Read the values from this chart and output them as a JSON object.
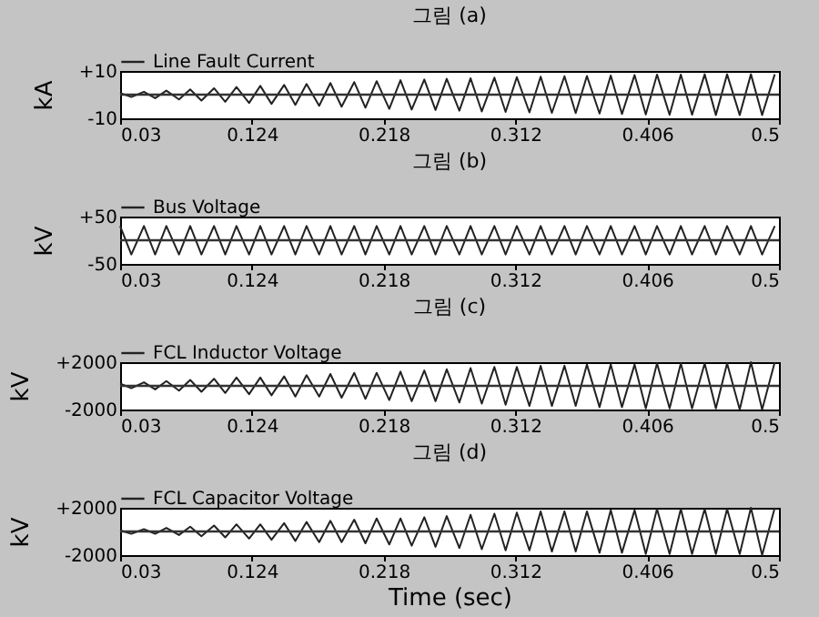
{
  "chart_data": [
    {
      "type": "line",
      "title": "그림 (a)",
      "ylabel": "kA",
      "legend": "top left",
      "ref_lines": [
        {
          "axis": "y",
          "value": 0,
          "color": "#333333"
        }
      ],
      "xlim": [
        0.03,
        0.5
      ],
      "xticks": [
        0.03,
        0.124,
        0.218,
        0.312,
        0.406,
        0.5
      ],
      "ylim": [
        -10,
        10
      ],
      "yticks": [
        {
          "value": -10,
          "label": "-10"
        },
        {
          "value": 10,
          "label": "+10"
        }
      ],
      "x": [
        0.03,
        0.038,
        0.047,
        0.055,
        0.063,
        0.072,
        0.08,
        0.088,
        0.097,
        0.105,
        0.113,
        0.122,
        0.13,
        0.138,
        0.147,
        0.155,
        0.163,
        0.172,
        0.18,
        0.188,
        0.197,
        0.205,
        0.213,
        0.222,
        0.23,
        0.238,
        0.247,
        0.255,
        0.263,
        0.272,
        0.28,
        0.288,
        0.297,
        0.305,
        0.313,
        0.322,
        0.33,
        0.338,
        0.347,
        0.355,
        0.363,
        0.372,
        0.38,
        0.388,
        0.397,
        0.405,
        0.413,
        0.422,
        0.43,
        0.438,
        0.447,
        0.455,
        0.463,
        0.472,
        0.48,
        0.488,
        0.497
      ],
      "series": [
        {
          "name": "Line Fault Current",
          "color": "#222222",
          "values": [
            0.7,
            -1,
            1.2,
            -1.5,
            1.7,
            -2,
            2.2,
            -2.5,
            2.7,
            -3,
            3.2,
            -3.5,
            3.7,
            -3.9,
            4.1,
            -4.3,
            4.5,
            -4.7,
            4.9,
            -5.1,
            5.3,
            -5.5,
            5.7,
            -6,
            6.1,
            -6.3,
            6.4,
            -6.5,
            6.7,
            -6.8,
            6.9,
            -7.1,
            7.2,
            -7.3,
            7.4,
            -7.5,
            7.6,
            -7.7,
            7.8,
            -7.8,
            7.9,
            -8,
            8.1,
            -8.2,
            8.3,
            -8.4,
            8.5,
            -8.5,
            8.5,
            -8.5,
            8.6,
            -8.6,
            8.6,
            -8.6,
            8.6,
            -8.6,
            8.6
          ]
        }
      ]
    },
    {
      "type": "line",
      "title": "그림 (b)",
      "ylabel": "kV",
      "legend": "top left",
      "ref_lines": [
        {
          "axis": "y",
          "value": 0,
          "color": "#333333"
        }
      ],
      "xlim": [
        0.03,
        0.5
      ],
      "xticks": [
        0.03,
        0.124,
        0.218,
        0.312,
        0.406,
        0.5
      ],
      "ylim": [
        -50,
        50
      ],
      "yticks": [
        {
          "value": -50,
          "label": "-50"
        },
        {
          "value": 50,
          "label": "+50"
        }
      ],
      "x": [
        0.03,
        0.038,
        0.047,
        0.055,
        0.063,
        0.072,
        0.08,
        0.088,
        0.097,
        0.105,
        0.113,
        0.122,
        0.13,
        0.138,
        0.147,
        0.155,
        0.163,
        0.172,
        0.18,
        0.188,
        0.197,
        0.205,
        0.213,
        0.222,
        0.23,
        0.238,
        0.247,
        0.255,
        0.263,
        0.272,
        0.28,
        0.288,
        0.297,
        0.305,
        0.313,
        0.322,
        0.33,
        0.338,
        0.347,
        0.355,
        0.363,
        0.372,
        0.38,
        0.388,
        0.397,
        0.405,
        0.413,
        0.422,
        0.43,
        0.438,
        0.447,
        0.455,
        0.463,
        0.472,
        0.48,
        0.488,
        0.497
      ],
      "series": [
        {
          "name": "Bus Voltage",
          "color": "#222222",
          "values": [
            30,
            -30,
            30,
            -30,
            30,
            -30,
            30,
            -30,
            30,
            -30,
            30,
            -30,
            30,
            -30,
            30,
            -30,
            30,
            -30,
            30,
            -30,
            30,
            -30,
            30,
            -30,
            30,
            -30,
            30,
            -30,
            30,
            -30,
            30,
            -30,
            30,
            -30,
            30,
            -30,
            30,
            -30,
            30,
            -30,
            30,
            -30,
            30,
            -30,
            30,
            -30,
            30,
            -30,
            30,
            -30,
            30,
            -30,
            30,
            -30,
            30,
            -30,
            30
          ]
        }
      ]
    },
    {
      "type": "line",
      "title": "그림 (c)",
      "ylabel": "kV",
      "legend": "top left",
      "ref_lines": [
        {
          "axis": "y",
          "value": 0,
          "color": "#333333"
        }
      ],
      "xlim": [
        0.03,
        0.5
      ],
      "xticks": [
        0.03,
        0.124,
        0.218,
        0.312,
        0.406,
        0.5
      ],
      "ylim": [
        -2000,
        2000
      ],
      "yticks": [
        {
          "value": -2000,
          "label": "-2000"
        },
        {
          "value": 2000,
          "label": "+2000"
        }
      ],
      "x": [
        0.03,
        0.038,
        0.047,
        0.055,
        0.063,
        0.072,
        0.08,
        0.088,
        0.097,
        0.105,
        0.113,
        0.122,
        0.13,
        0.138,
        0.147,
        0.155,
        0.163,
        0.172,
        0.18,
        0.188,
        0.197,
        0.205,
        0.213,
        0.222,
        0.23,
        0.238,
        0.247,
        0.255,
        0.263,
        0.272,
        0.28,
        0.288,
        0.297,
        0.305,
        0.313,
        0.322,
        0.33,
        0.338,
        0.347,
        0.355,
        0.363,
        0.372,
        0.38,
        0.388,
        0.397,
        0.405,
        0.413,
        0.422,
        0.43,
        0.438,
        0.447,
        0.455,
        0.463,
        0.472,
        0.48,
        0.488,
        0.497
      ],
      "series": [
        {
          "name": "FCL Inductor Voltage",
          "color": "#222222",
          "values": [
            200,
            -200,
            300,
            -300,
            400,
            -400,
            500,
            -500,
            600,
            -600,
            700,
            -700,
            700,
            -800,
            800,
            -900,
            900,
            -900,
            1000,
            -1000,
            1100,
            -1100,
            1100,
            -1200,
            1200,
            -1300,
            1300,
            -1300,
            1400,
            -1400,
            1500,
            -1500,
            1600,
            -1600,
            1600,
            -1700,
            1700,
            -1700,
            1700,
            -1700,
            1800,
            -1800,
            1800,
            -1800,
            1800,
            -1900,
            1900,
            -1900,
            1900,
            -1900,
            1900,
            -1900,
            1900,
            -2000,
            2000,
            -2000,
            2000
          ]
        }
      ]
    },
    {
      "type": "line",
      "title": "그림 (d)",
      "ylabel": "kV",
      "xlabel": "Time (sec)",
      "legend": "top left",
      "ref_lines": [
        {
          "axis": "y",
          "value": 0,
          "color": "#333333"
        }
      ],
      "xlim": [
        0.03,
        0.5
      ],
      "xticks": [
        0.03,
        0.124,
        0.218,
        0.312,
        0.406,
        0.5
      ],
      "ylim": [
        -2000,
        2000
      ],
      "yticks": [
        {
          "value": -2000,
          "label": "-2000"
        },
        {
          "value": 2000,
          "label": "+2000"
        }
      ],
      "x": [
        0.03,
        0.038,
        0.047,
        0.055,
        0.063,
        0.072,
        0.08,
        0.088,
        0.097,
        0.105,
        0.113,
        0.122,
        0.13,
        0.138,
        0.147,
        0.155,
        0.163,
        0.172,
        0.18,
        0.188,
        0.197,
        0.205,
        0.213,
        0.222,
        0.23,
        0.238,
        0.247,
        0.255,
        0.263,
        0.272,
        0.28,
        0.288,
        0.297,
        0.305,
        0.313,
        0.322,
        0.33,
        0.338,
        0.347,
        0.355,
        0.363,
        0.372,
        0.38,
        0.388,
        0.397,
        0.405,
        0.413,
        0.422,
        0.43,
        0.438,
        0.447,
        0.455,
        0.463,
        0.472,
        0.48,
        0.488,
        0.497
      ],
      "series": [
        {
          "name": "FCL Capacitor Voltage",
          "color": "#222222",
          "values": [
            100,
            -200,
            200,
            -200,
            300,
            -300,
            400,
            -400,
            500,
            -500,
            600,
            -600,
            600,
            -700,
            700,
            -800,
            800,
            -900,
            900,
            -900,
            1000,
            -1000,
            1100,
            -1100,
            1100,
            -1200,
            1200,
            -1300,
            1300,
            -1400,
            1400,
            -1500,
            1500,
            -1600,
            1600,
            -1600,
            1700,
            -1700,
            1700,
            -1700,
            1700,
            -1800,
            1800,
            -1800,
            1800,
            -1900,
            1900,
            -1900,
            1900,
            -1900,
            1900,
            -1900,
            1900,
            -1900,
            2000,
            -2000,
            2000
          ]
        }
      ]
    }
  ]
}
